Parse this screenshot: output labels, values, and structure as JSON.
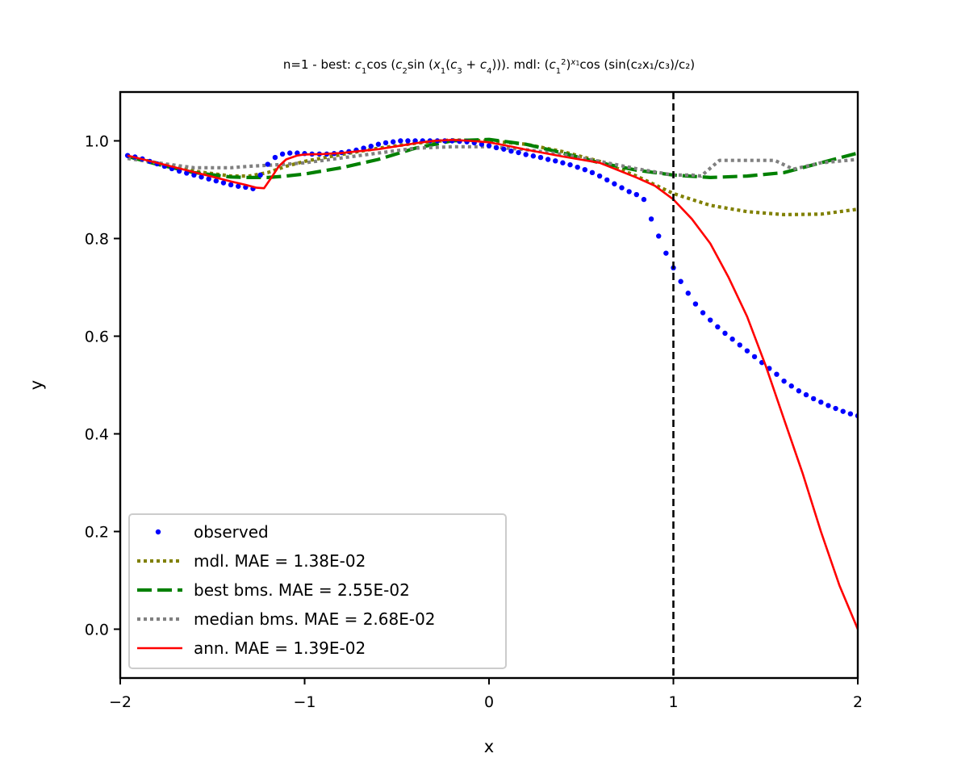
{
  "chart_data": {
    "type": "line",
    "title_parts": [
      {
        "t": "n=1 - best: ",
        "it": false
      },
      {
        "t": "c",
        "it": true
      },
      {
        "t": "1",
        "sub": true
      },
      {
        "t": "cos (",
        "it": false
      },
      {
        "t": "c",
        "it": true
      },
      {
        "t": "2",
        "sub": true
      },
      {
        "t": "sin (",
        "it": false
      },
      {
        "t": "x",
        "it": true
      },
      {
        "t": "1",
        "sub": true
      },
      {
        "t": "(",
        "it": false
      },
      {
        "t": "c",
        "it": true
      },
      {
        "t": "3",
        "sub": true
      },
      {
        "t": " + ",
        "it": false
      },
      {
        "t": "c",
        "it": true
      },
      {
        "t": "4",
        "sub": true
      },
      {
        "t": "))). mdl: ",
        "it": false
      },
      {
        "t": "(",
        "it": false
      },
      {
        "t": "c",
        "it": true
      },
      {
        "t": "1",
        "sub": true
      },
      {
        "t": "2",
        "sup": true
      },
      {
        "t": ")",
        "it": false
      },
      {
        "t": "x",
        "sup": true,
        "it": true
      },
      {
        "t": "1",
        "subsup": true
      },
      {
        "t": "cos (sin(c₂x₁/c₃)/c₂)",
        "it": false
      }
    ],
    "xlabel": "x",
    "ylabel": "y",
    "xlim": [
      -2,
      2
    ],
    "ylim": [
      -0.1,
      1.1
    ],
    "xticks": [
      -2,
      -1,
      0,
      1,
      2
    ],
    "xtick_labels": [
      "−2",
      "−1",
      "0",
      "1",
      "2"
    ],
    "yticks": [
      0.0,
      0.2,
      0.4,
      0.6,
      0.8,
      1.0
    ],
    "ytick_labels": [
      "0.0",
      "0.2",
      "0.4",
      "0.6",
      "0.8",
      "1.0"
    ],
    "vline_x": 1,
    "grid": false,
    "legend_position": "lower-left",
    "series": [
      {
        "name": "observed",
        "style": "points",
        "color": "#0000ff",
        "x": [
          -1.96,
          -1.92,
          -1.88,
          -1.84,
          -1.8,
          -1.76,
          -1.72,
          -1.68,
          -1.64,
          -1.6,
          -1.56,
          -1.52,
          -1.48,
          -1.44,
          -1.4,
          -1.36,
          -1.32,
          -1.28,
          -1.24,
          -1.2,
          -1.16,
          -1.12,
          -1.08,
          -1.04,
          -1.0,
          -0.96,
          -0.92,
          -0.88,
          -0.84,
          -0.8,
          -0.76,
          -0.72,
          -0.68,
          -0.64,
          -0.6,
          -0.56,
          -0.52,
          -0.48,
          -0.44,
          -0.4,
          -0.36,
          -0.32,
          -0.28,
          -0.24,
          -0.2,
          -0.16,
          -0.12,
          -0.08,
          -0.04,
          0.0,
          0.04,
          0.08,
          0.12,
          0.16,
          0.2,
          0.24,
          0.28,
          0.32,
          0.36,
          0.4,
          0.44,
          0.48,
          0.52,
          0.56,
          0.6,
          0.64,
          0.68,
          0.72,
          0.76,
          0.8,
          0.84,
          0.88,
          0.92,
          0.96,
          1.0,
          1.04,
          1.08,
          1.12,
          1.16,
          1.2,
          1.24,
          1.28,
          1.32,
          1.36,
          1.4,
          1.44,
          1.48,
          1.52,
          1.56,
          1.6,
          1.64,
          1.68,
          1.72,
          1.76,
          1.8,
          1.84,
          1.88,
          1.92,
          1.96,
          2.0
        ],
        "y": [
          0.97,
          0.967,
          0.963,
          0.958,
          0.953,
          0.948,
          0.943,
          0.938,
          0.934,
          0.93,
          0.926,
          0.922,
          0.918,
          0.914,
          0.91,
          0.907,
          0.905,
          0.902,
          0.93,
          0.952,
          0.966,
          0.973,
          0.975,
          0.975,
          0.974,
          0.973,
          0.973,
          0.973,
          0.974,
          0.976,
          0.978,
          0.981,
          0.985,
          0.989,
          0.993,
          0.996,
          0.998,
          1.0,
          1.0,
          1.0,
          1.0,
          1.0,
          1.0,
          1.0,
          1.0,
          0.999,
          0.998,
          0.996,
          0.993,
          0.99,
          0.986,
          0.983,
          0.979,
          0.976,
          0.972,
          0.969,
          0.966,
          0.962,
          0.959,
          0.955,
          0.951,
          0.946,
          0.941,
          0.935,
          0.928,
          0.92,
          0.912,
          0.904,
          0.896,
          0.89,
          0.88,
          0.84,
          0.805,
          0.77,
          0.74,
          0.712,
          0.688,
          0.666,
          0.648,
          0.633,
          0.619,
          0.606,
          0.594,
          0.582,
          0.57,
          0.558,
          0.546,
          0.534,
          0.522,
          0.508,
          0.498,
          0.488,
          0.48,
          0.472,
          0.465,
          0.458,
          0.452,
          0.446,
          0.441,
          0.437
        ]
      },
      {
        "name": "mdl. MAE = 1.38E-02",
        "style": "dotted",
        "color": "#808000",
        "x": [
          -1.96,
          -1.8,
          -1.6,
          -1.4,
          -1.3,
          -1.2,
          -1.1,
          -1.0,
          -0.8,
          -0.6,
          -0.4,
          -0.2,
          0.0,
          0.2,
          0.4,
          0.6,
          0.8,
          1.0,
          1.2,
          1.4,
          1.6,
          1.8,
          2.0
        ],
        "y": [
          0.968,
          0.955,
          0.938,
          0.928,
          0.928,
          0.935,
          0.948,
          0.958,
          0.972,
          0.985,
          0.995,
          1.002,
          1.0,
          0.993,
          0.978,
          0.958,
          0.928,
          0.892,
          0.868,
          0.855,
          0.849,
          0.85,
          0.86
        ]
      },
      {
        "name": "best bms. MAE = 2.55E-02",
        "style": "dashed",
        "color": "#008000",
        "x": [
          -1.96,
          -1.8,
          -1.6,
          -1.4,
          -1.3,
          -1.2,
          -1.1,
          -1.0,
          -0.8,
          -0.6,
          -0.4,
          -0.2,
          0.0,
          0.2,
          0.4,
          0.6,
          0.8,
          1.0,
          1.2,
          1.4,
          1.6,
          1.8,
          2.0
        ],
        "y": [
          0.968,
          0.952,
          0.935,
          0.926,
          0.925,
          0.925,
          0.928,
          0.932,
          0.945,
          0.962,
          0.985,
          1.0,
          1.003,
          0.993,
          0.975,
          0.955,
          0.94,
          0.93,
          0.925,
          0.928,
          0.935,
          0.955,
          0.975
        ]
      },
      {
        "name": "median bms. MAE = 2.68E-02",
        "style": "dotted",
        "color": "#808080",
        "x": [
          -1.96,
          -1.8,
          -1.6,
          -1.4,
          -1.3,
          -1.2,
          -1.1,
          -1.0,
          -0.8,
          -0.6,
          -0.4,
          -0.2,
          0.0,
          0.2,
          0.4,
          0.6,
          0.8,
          1.0,
          1.1,
          1.15,
          1.25,
          1.4,
          1.55,
          1.65,
          1.8,
          2.0
        ],
        "y": [
          0.964,
          0.955,
          0.945,
          0.945,
          0.948,
          0.95,
          0.952,
          0.955,
          0.965,
          0.975,
          0.985,
          0.988,
          0.988,
          0.982,
          0.972,
          0.958,
          0.943,
          0.93,
          0.93,
          0.928,
          0.96,
          0.96,
          0.96,
          0.942,
          0.955,
          0.962
        ]
      },
      {
        "name": "ann. MAE = 1.39E-02",
        "style": "solid",
        "color": "#ff0000",
        "x": [
          -1.96,
          -1.8,
          -1.6,
          -1.4,
          -1.32,
          -1.26,
          -1.22,
          -1.18,
          -1.14,
          -1.1,
          -1.04,
          -1.0,
          -0.9,
          -0.8,
          -0.6,
          -0.4,
          -0.3,
          -0.2,
          -0.1,
          0.0,
          0.1,
          0.2,
          0.4,
          0.6,
          0.8,
          0.9,
          1.0,
          1.1,
          1.2,
          1.3,
          1.4,
          1.5,
          1.6,
          1.7,
          1.8,
          1.9,
          2.0
        ],
        "y": [
          0.97,
          0.955,
          0.936,
          0.917,
          0.91,
          0.904,
          0.903,
          0.925,
          0.948,
          0.962,
          0.97,
          0.972,
          0.973,
          0.975,
          0.983,
          0.995,
          1.0,
          1.002,
          1.0,
          0.997,
          0.99,
          0.982,
          0.968,
          0.955,
          0.925,
          0.908,
          0.88,
          0.84,
          0.79,
          0.72,
          0.64,
          0.54,
          0.43,
          0.32,
          0.2,
          0.09,
          0.0
        ]
      }
    ]
  }
}
